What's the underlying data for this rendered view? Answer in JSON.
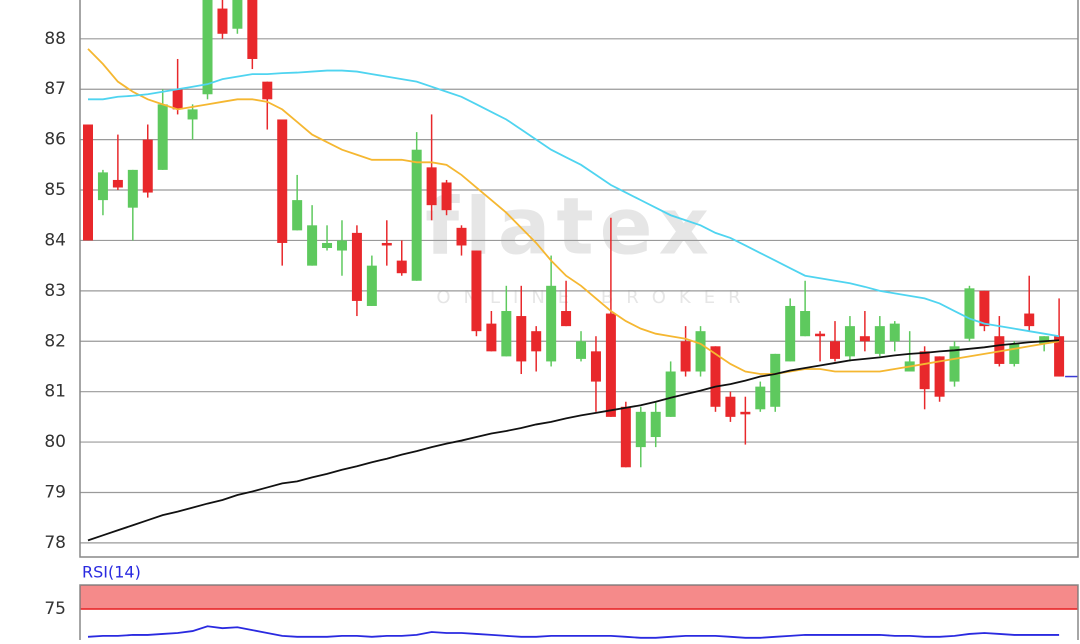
{
  "chart_data": [
    {
      "type": "candlestick",
      "watermark": {
        "brand": "flatex",
        "tagline": "ONLINE BROKER"
      },
      "open": [
        86.3,
        84.8,
        85.2,
        84.65,
        86.0,
        85.4,
        87.0,
        86.4,
        86.9,
        88.6,
        88.2,
        88.9,
        87.15,
        86.4,
        84.2,
        83.5,
        83.85,
        83.8,
        84.15,
        82.7,
        83.95,
        83.6,
        83.2,
        85.45,
        85.15,
        84.25,
        83.8,
        82.35,
        81.7,
        82.5,
        82.2,
        81.6,
        82.6,
        81.65,
        81.8,
        82.55,
        80.7,
        79.9,
        80.1,
        80.5,
        82.0,
        81.4,
        81.9,
        80.9,
        80.6,
        80.65,
        80.7,
        81.6,
        82.1,
        82.15,
        82.0,
        81.7,
        82.1,
        81.75,
        82.0,
        81.4,
        81.8,
        81.7,
        81.2,
        82.05,
        83.0,
        82.1,
        81.55,
        82.55,
        81.95,
        82.1
      ],
      "high": [
        86.3,
        85.4,
        86.1,
        85.4,
        86.3,
        87.0,
        87.6,
        86.7,
        88.9,
        88.9,
        88.9,
        88.9,
        87.15,
        86.4,
        85.3,
        84.7,
        84.3,
        84.4,
        84.3,
        83.7,
        84.4,
        84.0,
        86.15,
        86.5,
        85.2,
        84.3,
        83.8,
        82.6,
        83.1,
        83.1,
        82.3,
        83.7,
        83.2,
        82.2,
        82.1,
        84.45,
        80.8,
        80.7,
        80.8,
        81.6,
        82.3,
        82.3,
        81.9,
        81.0,
        80.9,
        81.2,
        81.75,
        82.85,
        83.2,
        82.2,
        82.4,
        82.5,
        82.6,
        82.5,
        82.4,
        82.2,
        81.9,
        81.7,
        82.0,
        83.1,
        83.0,
        82.5,
        82.0,
        83.3,
        82.1,
        82.85
      ],
      "low": [
        84.0,
        84.5,
        85.0,
        84.0,
        84.85,
        85.4,
        86.5,
        86.0,
        86.8,
        88.0,
        88.1,
        87.4,
        86.2,
        83.5,
        84.2,
        83.5,
        83.8,
        83.3,
        82.5,
        82.7,
        83.5,
        83.3,
        83.2,
        84.4,
        84.5,
        83.7,
        82.1,
        81.8,
        81.7,
        81.35,
        81.4,
        81.5,
        82.3,
        81.6,
        80.6,
        80.5,
        79.5,
        79.5,
        79.9,
        80.5,
        81.3,
        81.3,
        80.6,
        80.4,
        79.95,
        80.6,
        80.6,
        81.6,
        82.1,
        81.6,
        81.6,
        81.6,
        81.8,
        81.7,
        81.8,
        81.4,
        80.65,
        80.8,
        81.1,
        82.0,
        82.2,
        81.5,
        81.5,
        82.2,
        81.8,
        81.3
      ],
      "close": [
        84.0,
        85.35,
        85.05,
        85.4,
        84.95,
        86.7,
        86.6,
        86.6,
        88.8,
        88.1,
        88.8,
        87.6,
        86.8,
        83.95,
        84.8,
        84.3,
        83.95,
        84.0,
        82.8,
        83.5,
        83.9,
        83.35,
        85.8,
        84.7,
        84.6,
        83.9,
        82.2,
        81.8,
        82.6,
        81.6,
        81.8,
        83.1,
        82.3,
        82.0,
        81.2,
        80.5,
        79.5,
        80.6,
        80.6,
        81.4,
        81.4,
        82.2,
        80.7,
        80.5,
        80.55,
        81.1,
        81.75,
        82.7,
        82.6,
        82.1,
        81.65,
        82.3,
        82.0,
        82.3,
        82.35,
        81.6,
        81.05,
        80.9,
        81.9,
        83.05,
        82.3,
        81.55,
        81.95,
        82.3,
        82.1,
        81.3
      ],
      "up_color": "#5ec95e",
      "down_color": "#e8282b",
      "last_color": "#3b3bd6",
      "series": [
        {
          "color": "#f5b731",
          "values": [
            87.8,
            87.5,
            87.15,
            86.95,
            86.8,
            86.7,
            86.6,
            86.65,
            86.7,
            86.75,
            86.8,
            86.8,
            86.75,
            86.6,
            86.35,
            86.1,
            85.95,
            85.8,
            85.7,
            85.6,
            85.6,
            85.6,
            85.55,
            85.55,
            85.5,
            85.3,
            85.05,
            84.8,
            84.55,
            84.25,
            83.95,
            83.6,
            83.3,
            83.1,
            82.85,
            82.6,
            82.4,
            82.25,
            82.15,
            82.1,
            82.05,
            81.95,
            81.75,
            81.55,
            81.4,
            81.35,
            81.35,
            81.4,
            81.45,
            81.45,
            81.4,
            81.4,
            81.4,
            81.4,
            81.45,
            81.5,
            81.55,
            81.6,
            81.65,
            81.7,
            81.75,
            81.8,
            81.85,
            81.9,
            81.95,
            82.0
          ]
        },
        {
          "color": "#4fd4f0",
          "values": [
            86.8,
            86.8,
            86.85,
            86.87,
            86.9,
            86.95,
            87.0,
            87.05,
            87.1,
            87.2,
            87.25,
            87.3,
            87.3,
            87.32,
            87.33,
            87.35,
            87.37,
            87.37,
            87.35,
            87.3,
            87.25,
            87.2,
            87.15,
            87.05,
            86.95,
            86.85,
            86.7,
            86.55,
            86.4,
            86.2,
            86.0,
            85.8,
            85.65,
            85.5,
            85.3,
            85.1,
            84.95,
            84.8,
            84.65,
            84.5,
            84.4,
            84.3,
            84.15,
            84.05,
            83.9,
            83.75,
            83.6,
            83.45,
            83.3,
            83.25,
            83.2,
            83.15,
            83.08,
            83.0,
            82.95,
            82.9,
            82.85,
            82.75,
            82.6,
            82.45,
            82.35,
            82.3,
            82.25,
            82.2,
            82.15,
            82.1
          ]
        },
        {
          "color": "#111111",
          "values": [
            78.05,
            78.15,
            78.25,
            78.35,
            78.45,
            78.55,
            78.62,
            78.7,
            78.78,
            78.85,
            78.95,
            79.02,
            79.1,
            79.18,
            79.22,
            79.3,
            79.37,
            79.45,
            79.52,
            79.6,
            79.67,
            79.75,
            79.82,
            79.9,
            79.97,
            80.03,
            80.1,
            80.17,
            80.22,
            80.28,
            80.35,
            80.4,
            80.47,
            80.53,
            80.58,
            80.63,
            80.68,
            80.73,
            80.8,
            80.88,
            80.95,
            81.02,
            81.1,
            81.15,
            81.22,
            81.3,
            81.35,
            81.42,
            81.47,
            81.52,
            81.57,
            81.62,
            81.65,
            81.68,
            81.72,
            81.75,
            81.77,
            81.8,
            81.82,
            81.85,
            81.88,
            81.92,
            81.95,
            81.98,
            82.0,
            82.02
          ]
        }
      ],
      "ylim": [
        77.72,
        88.77
      ],
      "yticks": [
        78,
        79,
        80,
        81,
        82,
        83,
        84,
        85,
        86,
        87,
        88
      ],
      "grid": true
    },
    {
      "type": "line",
      "title": "RSI(14)",
      "color": "#2a2ae0",
      "values": [
        46,
        47,
        47,
        48,
        48,
        49,
        50,
        52,
        57,
        55,
        56,
        53,
        50,
        47,
        46,
        46,
        46,
        47,
        47,
        46,
        47,
        47,
        48,
        51,
        50,
        50,
        49,
        48,
        47,
        46,
        46,
        47,
        47,
        47,
        47,
        47,
        46,
        45,
        45,
        46,
        47,
        47,
        47,
        46,
        45,
        45,
        46,
        47,
        48,
        48,
        48,
        48,
        48,
        48,
        47,
        47,
        46,
        46,
        47,
        49,
        50,
        49,
        48,
        48,
        48,
        48
      ],
      "band": [
        75,
        100
      ],
      "band_color": "#f58a8a",
      "ylim": [
        42.7,
        100
      ],
      "yticks": [
        75
      ]
    }
  ]
}
